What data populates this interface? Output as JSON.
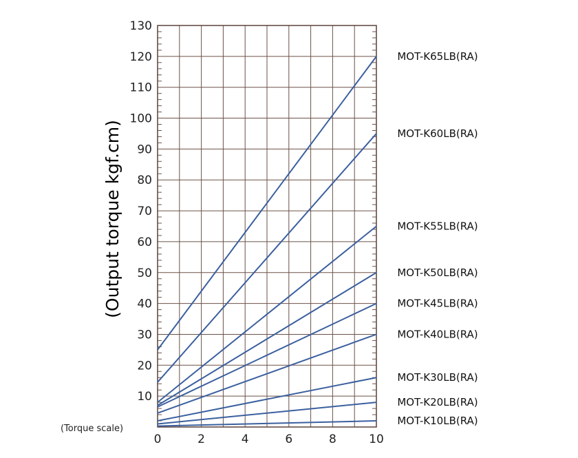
{
  "chart_data": {
    "type": "line",
    "title": "",
    "ylabel": "(Output torque kgf.cm)",
    "xlabel": "(Torque scale)",
    "xlim": [
      0,
      10
    ],
    "ylim": [
      0,
      130
    ],
    "xticks": [
      "0",
      "2",
      "4",
      "6",
      "8",
      "10"
    ],
    "yticks": [
      "10",
      "20",
      "30",
      "40",
      "50",
      "60",
      "70",
      "80",
      "90",
      "100",
      "110",
      "120",
      "130"
    ],
    "grid": true,
    "legend": "direct-labels-right",
    "line_color": "#3a5f9e",
    "series": [
      {
        "name": "MOT-K65LB(RA)",
        "x": [
          0,
          10
        ],
        "y": [
          25,
          120
        ]
      },
      {
        "name": "MOT-K60LB(RA)",
        "x": [
          0,
          10
        ],
        "y": [
          14.5,
          95
        ]
      },
      {
        "name": "MOT-K55LB(RA)",
        "x": [
          0,
          10
        ],
        "y": [
          8,
          65
        ]
      },
      {
        "name": "MOT-K50LB(RA)",
        "x": [
          0,
          10
        ],
        "y": [
          7,
          50
        ]
      },
      {
        "name": "MOT-K45LB(RA)",
        "x": [
          0,
          10
        ],
        "y": [
          6.5,
          40
        ]
      },
      {
        "name": "MOT-K40LB(RA)",
        "x": [
          0,
          10
        ],
        "y": [
          4.5,
          30
        ]
      },
      {
        "name": "MOT-K30LB(RA)",
        "x": [
          0,
          10
        ],
        "y": [
          2,
          16
        ]
      },
      {
        "name": "MOT-K20LB(RA)",
        "x": [
          0,
          10
        ],
        "y": [
          1,
          8
        ]
      },
      {
        "name": "MOT-K10LB(RA)",
        "x": [
          0,
          10
        ],
        "y": [
          0.3,
          2
        ]
      }
    ]
  }
}
